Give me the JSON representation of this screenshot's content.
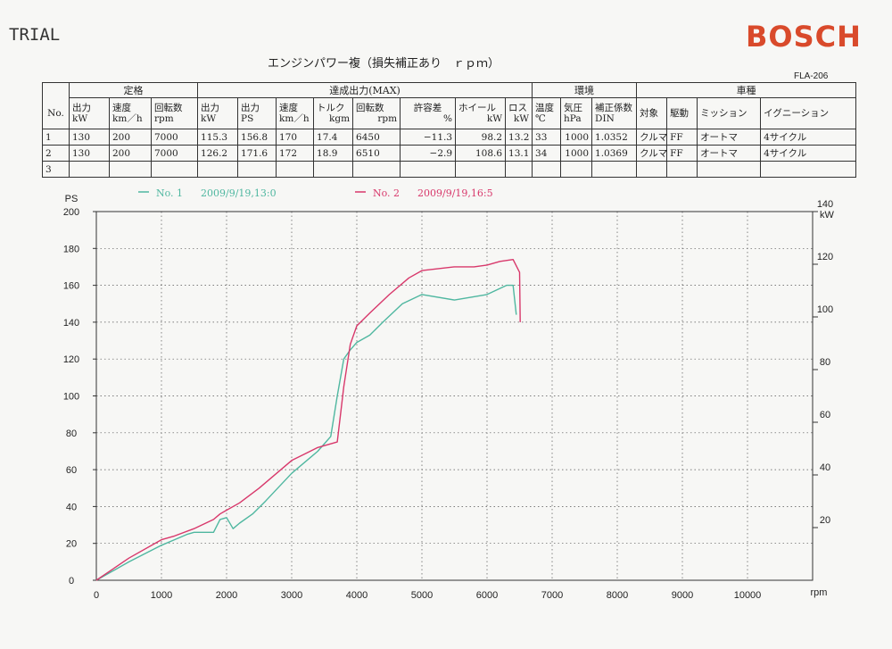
{
  "header": {
    "doc_code": "TRIAL",
    "brand": "BOSCH",
    "brand_color": "#d94a2b",
    "report_title": "エンジンパワー複（損失補正あり　ｒｐｍ）",
    "form_code": "FLA-206"
  },
  "table": {
    "group_headers": [
      "定格",
      "達成出力(MAX)",
      "環境",
      "車種"
    ],
    "no_label": "No.",
    "columns": [
      {
        "top": "出力",
        "unit": "kW"
      },
      {
        "top": "速度",
        "unit": "km／h"
      },
      {
        "top": "回転数",
        "unit": "rpm"
      },
      {
        "top": "出力",
        "unit": "kW"
      },
      {
        "top": "出力",
        "unit": "PS"
      },
      {
        "top": "速度",
        "unit": "km／h"
      },
      {
        "top": "トルク",
        "unit": "kgm"
      },
      {
        "top": "回転数",
        "unit": "rpm"
      },
      {
        "top": "許容差",
        "unit": "%"
      },
      {
        "top": "ホイール",
        "unit": "kW"
      },
      {
        "top": "ロス",
        "unit": "kW"
      },
      {
        "top": "温度",
        "unit": "℃"
      },
      {
        "top": "気圧",
        "unit": "hPa"
      },
      {
        "top": "補正係数",
        "unit": "DIN"
      },
      {
        "top": "対象",
        "unit": ""
      },
      {
        "top": "駆動",
        "unit": ""
      },
      {
        "top": "ミッション",
        "unit": ""
      },
      {
        "top": "イグニーション",
        "unit": ""
      }
    ],
    "rows": [
      {
        "no": "1",
        "cells": [
          "130",
          "200",
          "7000",
          "115.3",
          "156.8",
          "170",
          "17.4",
          "6450",
          "−11.3",
          "98.2",
          "13.2",
          "33",
          "1000",
          "1.0352",
          "クルマ",
          "FF",
          "オートマ",
          "4サイクル"
        ]
      },
      {
        "no": "2",
        "cells": [
          "130",
          "200",
          "7000",
          "126.2",
          "171.6",
          "172",
          "18.9",
          "6510",
          "−2.9",
          "108.6",
          "13.1",
          "34",
          "1000",
          "1.0369",
          "クルマ",
          "FF",
          "オートマ",
          "4サイクル"
        ]
      },
      {
        "no": "3",
        "cells": [
          "",
          "",
          "",
          "",
          "",
          "",
          "",
          "",
          "",
          "",
          "",
          "",
          "",
          "",
          "",
          "",
          "",
          ""
        ]
      }
    ]
  },
  "chart_data": {
    "type": "line",
    "title": "",
    "xlabel": "rpm",
    "ylabel": "PS",
    "y2label": "kW",
    "xlim": [
      0,
      11000
    ],
    "ylim": [
      0,
      200
    ],
    "y2lim": [
      0,
      140
    ],
    "xticks": [
      "0",
      "1000",
      "2000",
      "3000",
      "4000",
      "5000",
      "6000",
      "7000",
      "8000",
      "9000",
      "10000"
    ],
    "yticks": [
      "0",
      "20",
      "40",
      "60",
      "80",
      "100",
      "120",
      "140",
      "160",
      "180",
      "200"
    ],
    "y2ticks": [
      "20",
      "40",
      "60",
      "80",
      "100",
      "120",
      "140"
    ],
    "grid": true,
    "legend_position": "top",
    "series": [
      {
        "name": "No. 1",
        "timestamp": "2009/9/19,13:0",
        "color": "#4fb7a0",
        "x": [
          0,
          500,
          1000,
          1200,
          1400,
          1500,
          1800,
          1900,
          2000,
          2100,
          2200,
          2400,
          2600,
          3000,
          3400,
          3600,
          3700,
          3800,
          3900,
          4000,
          4200,
          4400,
          4700,
          5000,
          5500,
          6000,
          6300,
          6400,
          6450
        ],
        "y": [
          0,
          10,
          19,
          22,
          25,
          26,
          26,
          33,
          34,
          28,
          31,
          36,
          43,
          58,
          70,
          78,
          100,
          120,
          125,
          129,
          133,
          140,
          150,
          155,
          152,
          155,
          160,
          160,
          144
        ]
      },
      {
        "name": "No. 2",
        "timestamp": "2009/9/19,16:5",
        "color": "#d8386b",
        "x": [
          0,
          500,
          1000,
          1200,
          1500,
          1800,
          1900,
          2000,
          2200,
          2500,
          3000,
          3400,
          3700,
          3800,
          3900,
          4000,
          4200,
          4500,
          4800,
          5000,
          5500,
          5800,
          6000,
          6200,
          6400,
          6500,
          6510
        ],
        "y": [
          0,
          12,
          22,
          24,
          28,
          33,
          36,
          38,
          42,
          50,
          65,
          72,
          75,
          105,
          128,
          138,
          145,
          155,
          164,
          168,
          170,
          170,
          171,
          173,
          174,
          167,
          140
        ]
      }
    ]
  }
}
